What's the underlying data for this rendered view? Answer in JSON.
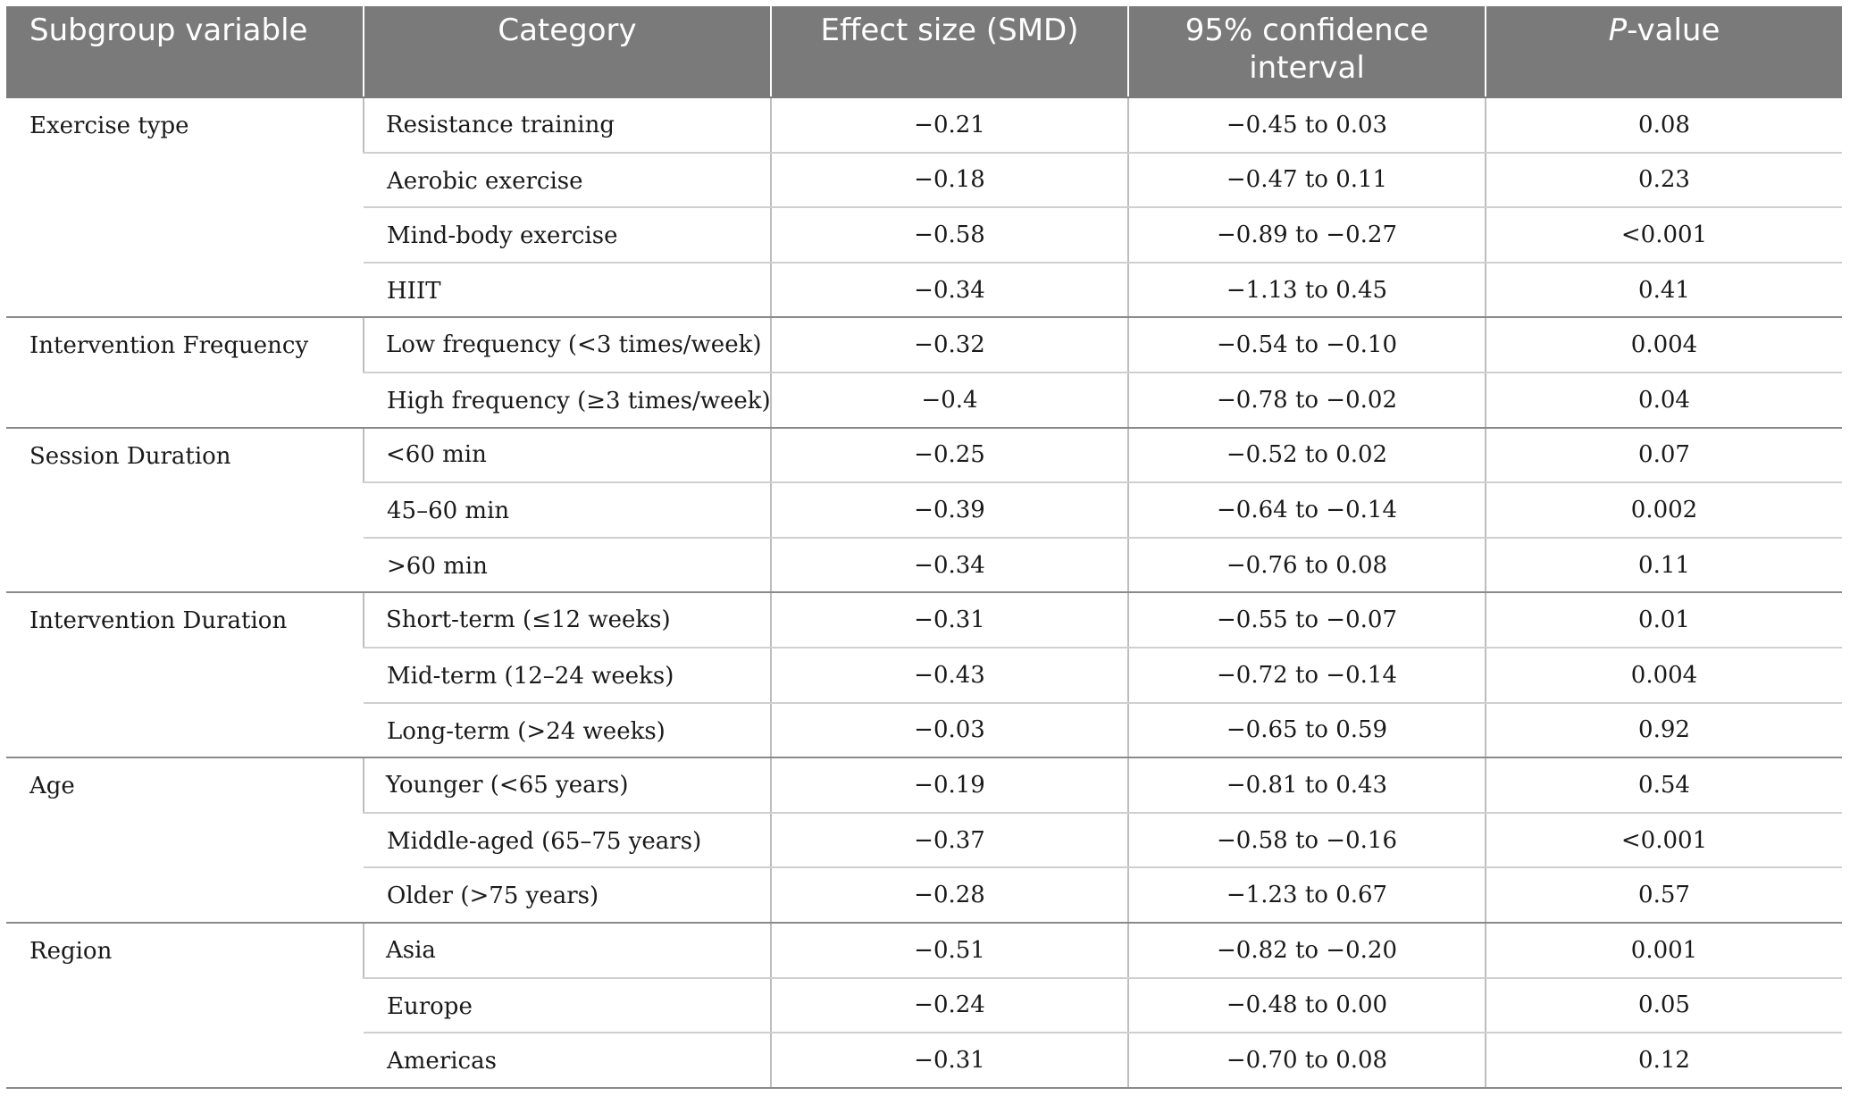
{
  "headers": {
    "subgroup": "Subgroup variable",
    "category": "Category",
    "effect": "Effect size (SMD)",
    "ci": "95% confidence interval",
    "p_italic": "P",
    "p_rest": "-value"
  },
  "groups": [
    {
      "name": "Exercise type",
      "rows": [
        {
          "category": "Resistance training",
          "smd": "−0.21",
          "ci": "−0.45 to 0.03",
          "p": "0.08"
        },
        {
          "category": "Aerobic exercise",
          "smd": "−0.18",
          "ci": "−0.47 to 0.11",
          "p": "0.23"
        },
        {
          "category": "Mind-body exercise",
          "smd": "−0.58",
          "ci": "−0.89 to −0.27",
          "p": "<0.001"
        },
        {
          "category": "HIIT",
          "smd": "−0.34",
          "ci": "−1.13 to 0.45",
          "p": "0.41"
        }
      ]
    },
    {
      "name": "Intervention Frequency",
      "rows": [
        {
          "category": "Low frequency (<3 times/week)",
          "smd": "−0.32",
          "ci": "−0.54 to −0.10",
          "p": "0.004"
        },
        {
          "category": "High frequency (≥3 times/week)",
          "smd": "−0.4",
          "ci": "−0.78 to −0.02",
          "p": "0.04"
        }
      ]
    },
    {
      "name": "Session Duration",
      "rows": [
        {
          "category": "<60 min",
          "smd": "−0.25",
          "ci": "−0.52 to 0.02",
          "p": "0.07"
        },
        {
          "category": "45–60 min",
          "smd": "−0.39",
          "ci": "−0.64 to −0.14",
          "p": "0.002"
        },
        {
          "category": ">60 min",
          "smd": "−0.34",
          "ci": "−0.76 to 0.08",
          "p": "0.11"
        }
      ]
    },
    {
      "name": "Intervention Duration",
      "rows": [
        {
          "category": "Short-term (≤12 weeks)",
          "smd": "−0.31",
          "ci": "−0.55 to −0.07",
          "p": "0.01"
        },
        {
          "category": "Mid-term (12–24 weeks)",
          "smd": "−0.43",
          "ci": "−0.72 to −0.14",
          "p": "0.004"
        },
        {
          "category": "Long-term (>24 weeks)",
          "smd": "−0.03",
          "ci": "−0.65 to 0.59",
          "p": "0.92"
        }
      ]
    },
    {
      "name": "Age",
      "rows": [
        {
          "category": "Younger (<65 years)",
          "smd": "−0.19",
          "ci": "−0.81 to 0.43",
          "p": "0.54"
        },
        {
          "category": "Middle-aged (65–75 years)",
          "smd": "−0.37",
          "ci": "−0.58 to −0.16",
          "p": "<0.001"
        },
        {
          "category": "Older (>75 years)",
          "smd": "−0.28",
          "ci": "−1.23 to 0.67",
          "p": "0.57"
        }
      ]
    },
    {
      "name": "Region",
      "rows": [
        {
          "category": "Asia",
          "smd": "−0.51",
          "ci": "−0.82 to −0.20",
          "p": "0.001"
        },
        {
          "category": "Europe",
          "smd": "−0.24",
          "ci": "−0.48 to 0.00",
          "p": "0.05"
        },
        {
          "category": "Americas",
          "smd": "−0.31",
          "ci": "−0.70 to 0.08",
          "p": "0.12"
        }
      ]
    }
  ]
}
